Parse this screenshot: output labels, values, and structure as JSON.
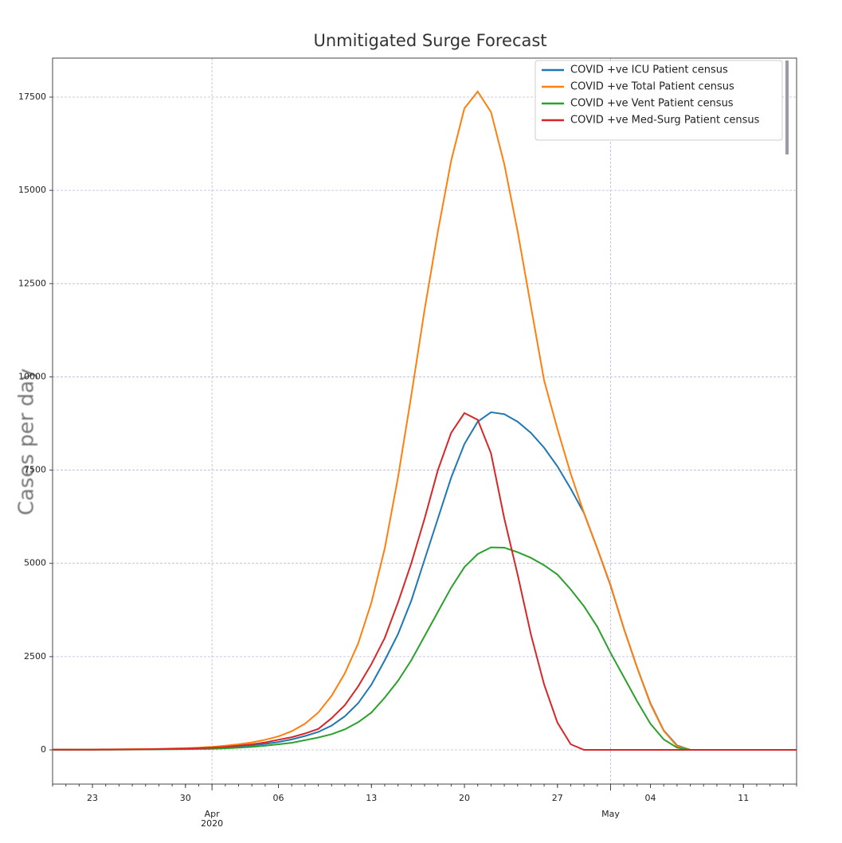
{
  "chart_data": {
    "type": "line",
    "title": "Unmitigated Surge Forecast",
    "ylabel": "Cases per day",
    "x": [
      "2020-03-20",
      "2020-03-21",
      "2020-03-22",
      "2020-03-23",
      "2020-03-24",
      "2020-03-25",
      "2020-03-26",
      "2020-03-27",
      "2020-03-28",
      "2020-03-29",
      "2020-03-30",
      "2020-03-31",
      "2020-04-01",
      "2020-04-02",
      "2020-04-03",
      "2020-04-04",
      "2020-04-05",
      "2020-04-06",
      "2020-04-07",
      "2020-04-08",
      "2020-04-09",
      "2020-04-10",
      "2020-04-11",
      "2020-04-12",
      "2020-04-13",
      "2020-04-14",
      "2020-04-15",
      "2020-04-16",
      "2020-04-17",
      "2020-04-18",
      "2020-04-19",
      "2020-04-20",
      "2020-04-21",
      "2020-04-22",
      "2020-04-23",
      "2020-04-24",
      "2020-04-25",
      "2020-04-26",
      "2020-04-27",
      "2020-04-28",
      "2020-04-29",
      "2020-04-30",
      "2020-05-01",
      "2020-05-02",
      "2020-05-03",
      "2020-05-04",
      "2020-05-05",
      "2020-05-06",
      "2020-05-07",
      "2020-05-08",
      "2020-05-09",
      "2020-05-10",
      "2020-05-11",
      "2020-05-12",
      "2020-05-13",
      "2020-05-14",
      "2020-05-15"
    ],
    "series": [
      {
        "name": "COVID +ve ICU Patient census",
        "color": "#1f77b4",
        "values": [
          3,
          4,
          5,
          6,
          8,
          10,
          12,
          15,
          18,
          23,
          30,
          40,
          50,
          70,
          90,
          120,
          160,
          210,
          280,
          370,
          480,
          650,
          900,
          1250,
          1750,
          2400,
          3100,
          4000,
          5100,
          6200,
          7300,
          8200,
          8800,
          9050,
          9000,
          8800,
          8500,
          8100,
          7600,
          7000,
          6350,
          5400,
          4400,
          3250,
          2200,
          1250,
          520,
          120,
          0,
          0,
          0,
          0,
          0,
          0,
          0,
          0,
          0
        ]
      },
      {
        "name": "COVID +ve Total Patient census",
        "color": "#ff7f0e",
        "values": [
          5,
          6,
          8,
          10,
          12,
          15,
          18,
          22,
          28,
          35,
          45,
          60,
          80,
          110,
          150,
          200,
          270,
          360,
          500,
          700,
          1000,
          1450,
          2050,
          2850,
          3950,
          5400,
          7300,
          9500,
          11800,
          13900,
          15800,
          17200,
          17650,
          17100,
          15700,
          13900,
          11900,
          9900,
          8600,
          7400,
          6350,
          5400,
          4420,
          3250,
          2200,
          1230,
          510,
          100,
          0,
          0,
          0,
          0,
          0,
          0,
          0,
          0,
          0
        ]
      },
      {
        "name": "COVID +ve Vent Patient census",
        "color": "#2ca02c",
        "values": [
          2,
          2,
          3,
          4,
          5,
          6,
          8,
          10,
          12,
          15,
          19,
          24,
          30,
          40,
          60,
          80,
          110,
          150,
          190,
          260,
          330,
          420,
          550,
          740,
          1000,
          1400,
          1850,
          2400,
          3050,
          3700,
          4350,
          4900,
          5250,
          5430,
          5420,
          5300,
          5150,
          4950,
          4700,
          4300,
          3850,
          3300,
          2600,
          1950,
          1300,
          700,
          280,
          60,
          0,
          0,
          0,
          0,
          0,
          0,
          0,
          0,
          0
        ]
      },
      {
        "name": "COVID +ve Med-Surg Patient census",
        "color": "#d62728",
        "values": [
          3,
          4,
          5,
          6,
          8,
          10,
          13,
          16,
          20,
          26,
          34,
          45,
          60,
          80,
          110,
          150,
          200,
          270,
          340,
          440,
          560,
          850,
          1200,
          1700,
          2300,
          3000,
          3950,
          5000,
          6200,
          7500,
          8500,
          9030,
          8850,
          7950,
          6200,
          4700,
          3100,
          1750,
          730,
          150,
          0,
          0,
          0,
          0,
          0,
          0,
          0,
          0,
          0,
          0,
          0,
          0,
          0,
          0,
          0,
          0,
          0
        ]
      }
    ],
    "xlim": [
      "2020-03-20",
      "2020-05-15"
    ],
    "xticks": [
      {
        "value": "2020-03-23",
        "label": "23"
      },
      {
        "value": "2020-03-30",
        "label": "30"
      },
      {
        "value": "2020-04-06",
        "label": "06"
      },
      {
        "value": "2020-04-13",
        "label": "13"
      },
      {
        "value": "2020-04-20",
        "label": "20"
      },
      {
        "value": "2020-04-27",
        "label": "27"
      },
      {
        "value": "2020-05-04",
        "label": "04"
      },
      {
        "value": "2020-05-11",
        "label": "11"
      }
    ],
    "xticks_major": [
      {
        "value": "2020-04-01",
        "label": "Apr\n2020"
      },
      {
        "value": "2020-05-01",
        "label": "May"
      }
    ],
    "ylim": [
      -918,
      18546
    ],
    "yticks": [
      0,
      2500,
      5000,
      7500,
      10000,
      12500,
      15000,
      17500
    ],
    "grid": true,
    "legend": "upper right"
  }
}
